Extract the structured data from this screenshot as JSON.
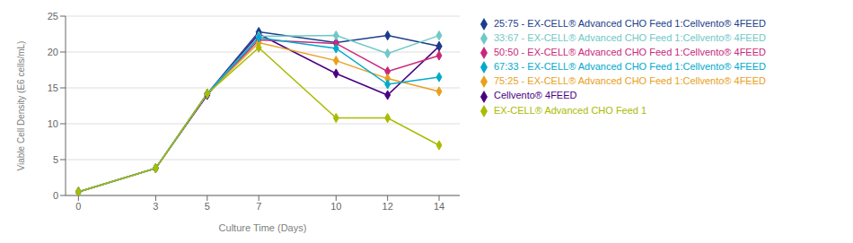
{
  "chart_data": {
    "type": "line",
    "x": [
      0,
      3,
      5,
      7,
      10,
      12,
      14
    ],
    "series": [
      {
        "name": "Cellvento® 4FEED",
        "color": "#4B0082",
        "values": [
          0.5,
          3.8,
          14.0,
          22.5,
          17.0,
          14.0,
          20.8
        ],
        "marker": "diamond",
        "line_style": "solid"
      },
      {
        "name": "25:75 - EX-CELL® Advanced CHO Feed 1:Cellvento® 4FEED",
        "color": "#1A3E8C",
        "values": [
          0.5,
          3.8,
          14.2,
          22.8,
          21.3,
          22.3,
          20.8
        ],
        "marker": "diamond",
        "line_style": "solid"
      },
      {
        "name": "50:50 - EX-CELL® Advanced CHO Feed 1:Cellvento® 4FEED",
        "color": "#C8287A",
        "values": [
          0.5,
          3.8,
          14.2,
          21.7,
          21.2,
          17.3,
          19.5
        ],
        "marker": "diamond",
        "line_style": "solid"
      },
      {
        "name": "75:25 - EX-CELL® Advanced CHO Feed 1:Cellvento® 4FEED",
        "color": "#E8A020",
        "values": [
          0.5,
          3.8,
          14.2,
          21.3,
          18.8,
          16.3,
          14.5
        ],
        "marker": "diamond",
        "line_style": "solid"
      },
      {
        "name": "33:67 - EX-CELL® Advanced CHO Feed 1:Cellvento® 4FEED",
        "color": "#70C8C8",
        "values": [
          0.5,
          3.8,
          14.2,
          22.2,
          22.3,
          19.8,
          22.3
        ],
        "marker": "diamond",
        "line_style": "solid"
      },
      {
        "name": "67:33 - EX-CELL® Advanced CHO Feed 1:Cellvento® 4FEED",
        "color": "#00AACC",
        "values": [
          0.5,
          3.8,
          14.2,
          22.0,
          20.5,
          15.5,
          16.5
        ],
        "marker": "diamond",
        "line_style": "solid"
      },
      {
        "name": "EX-CELL® Advanced CHO Feed 1",
        "color": "#AABB00",
        "values": [
          0.5,
          3.8,
          14.2,
          20.6,
          10.8,
          10.8,
          7.0
        ],
        "marker": "diamond",
        "line_style": "solid"
      }
    ],
    "xlabel": "Culture Time (Days)",
    "ylabel": "Viable Cell Density (E6 cells/mL)",
    "xlim": [
      -0.5,
      14.8
    ],
    "ylim": [
      0,
      25
    ],
    "xticks": [
      0,
      3,
      5,
      7,
      10,
      12,
      14
    ],
    "yticks": [
      0,
      5,
      10,
      15,
      20,
      25
    ],
    "grid": true,
    "legend": "right"
  }
}
